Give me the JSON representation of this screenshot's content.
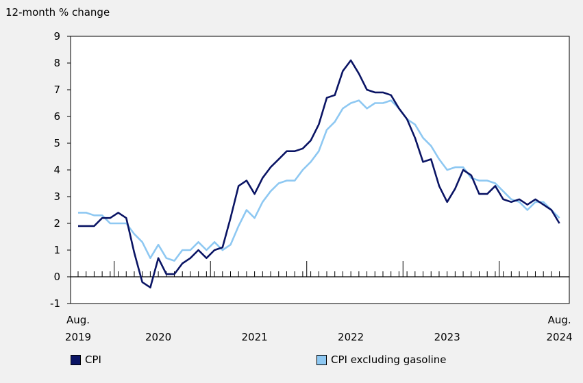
{
  "chart_data": {
    "type": "line",
    "ylabel": "12-month % change",
    "ylim": [
      -1,
      9
    ],
    "yticks": [
      -1,
      0,
      1,
      2,
      3,
      4,
      5,
      6,
      7,
      8,
      9
    ],
    "grid": false,
    "legend_position": "bottom",
    "x_start": "2019-08",
    "x_end": "2024-08",
    "x_labels": [
      {
        "month": "2019-08",
        "lines": [
          "Aug.",
          "2019"
        ]
      },
      {
        "month": "2020-06",
        "lines": [
          "",
          "2020"
        ]
      },
      {
        "month": "2021-06",
        "lines": [
          "",
          "2021"
        ]
      },
      {
        "month": "2022-06",
        "lines": [
          "",
          "2022"
        ]
      },
      {
        "month": "2023-06",
        "lines": [
          "",
          "2023"
        ]
      },
      {
        "month": "2024-08",
        "lines": [
          "Aug.",
          "2024"
        ]
      }
    ],
    "year_boundaries": [
      "2020-01",
      "2021-01",
      "2022-01",
      "2023-01",
      "2024-01"
    ],
    "series": [
      {
        "name": "CPI",
        "color": "#0a1464",
        "values": [
          1.9,
          1.9,
          1.9,
          2.2,
          2.2,
          2.4,
          2.2,
          0.9,
          -0.2,
          -0.4,
          0.7,
          0.1,
          0.1,
          0.5,
          0.7,
          1.0,
          0.7,
          1.0,
          1.1,
          2.2,
          3.4,
          3.6,
          3.1,
          3.7,
          4.1,
          4.4,
          4.7,
          4.7,
          4.8,
          5.1,
          5.7,
          6.7,
          6.8,
          7.7,
          8.1,
          7.6,
          7.0,
          6.9,
          6.9,
          6.8,
          6.3,
          5.9,
          5.2,
          4.3,
          4.4,
          3.4,
          2.8,
          3.3,
          4.0,
          3.8,
          3.1,
          3.1,
          3.4,
          2.9,
          2.8,
          2.9,
          2.7,
          2.9,
          2.7,
          2.5,
          2.0
        ]
      },
      {
        "name": "CPI excluding gasoline",
        "color": "#8ec8f2",
        "values": [
          2.4,
          2.4,
          2.3,
          2.3,
          2.0,
          2.0,
          2.0,
          1.6,
          1.3,
          0.7,
          1.2,
          0.7,
          0.6,
          1.0,
          1.0,
          1.3,
          1.0,
          1.3,
          1.0,
          1.2,
          1.9,
          2.5,
          2.2,
          2.8,
          3.2,
          3.5,
          3.6,
          3.6,
          4.0,
          4.3,
          4.7,
          5.5,
          5.8,
          6.3,
          6.5,
          6.6,
          6.3,
          6.5,
          6.5,
          6.6,
          6.3,
          5.9,
          5.7,
          5.2,
          4.9,
          4.4,
          4.0,
          4.1,
          4.1,
          3.7,
          3.6,
          3.6,
          3.5,
          3.2,
          2.9,
          2.8,
          2.5,
          2.8,
          2.8,
          2.5,
          2.2
        ]
      }
    ]
  }
}
